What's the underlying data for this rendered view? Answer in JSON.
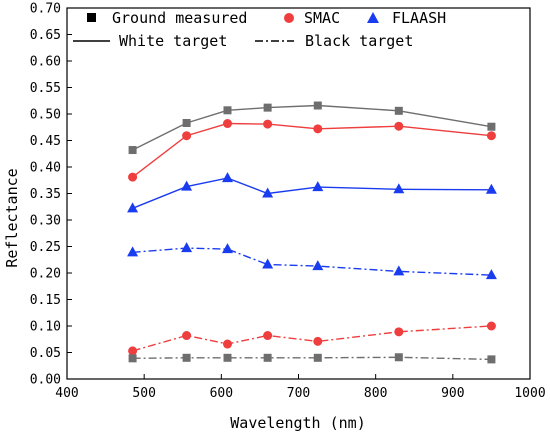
{
  "chart_data": {
    "type": "line",
    "xlabel": "Wavelength (nm)",
    "ylabel": "Reflectance",
    "xlim": [
      400,
      1000
    ],
    "ylim": [
      0.0,
      0.7
    ],
    "xticks": [
      "400",
      "500",
      "600",
      "700",
      "800",
      "900",
      "1000"
    ],
    "yticks": [
      "0.00",
      "0.05",
      "0.10",
      "0.15",
      "0.20",
      "0.25",
      "0.30",
      "0.35",
      "0.40",
      "0.45",
      "0.50",
      "0.55",
      "0.60",
      "0.65",
      "0.70"
    ],
    "grid": false,
    "legend_position": "top",
    "legend": {
      "ground": "Ground measured",
      "smac": "SMAC",
      "flaash": "FLAASH",
      "white": "White target",
      "black": "Black target"
    },
    "x": [
      485,
      555,
      608,
      660,
      725,
      830,
      950
    ],
    "series": [
      {
        "name": "Ground measured",
        "target": "White target",
        "color": "#6e6e6e",
        "marker": "square",
        "dash": "solid",
        "values": [
          0.432,
          0.483,
          0.507,
          0.512,
          0.516,
          0.506,
          0.476
        ]
      },
      {
        "name": "SMAC",
        "target": "White target",
        "color": "#ee3e3e",
        "marker": "circle",
        "dash": "solid",
        "values": [
          0.381,
          0.459,
          0.482,
          0.481,
          0.472,
          0.477,
          0.459
        ]
      },
      {
        "name": "FLAASH",
        "target": "White target",
        "color": "#1a3cf0",
        "marker": "triangle",
        "dash": "solid",
        "values": [
          0.322,
          0.363,
          0.379,
          0.35,
          0.362,
          0.358,
          0.357
        ]
      },
      {
        "name": "FLAASH",
        "target": "Black target",
        "color": "#1a3cf0",
        "marker": "triangle",
        "dash": "dashdot",
        "values": [
          0.239,
          0.247,
          0.245,
          0.216,
          0.213,
          0.203,
          0.196
        ]
      },
      {
        "name": "SMAC",
        "target": "Black target",
        "color": "#ee3e3e",
        "marker": "circle",
        "dash": "dashdot",
        "values": [
          0.053,
          0.082,
          0.066,
          0.082,
          0.071,
          0.089,
          0.1
        ]
      },
      {
        "name": "Ground measured",
        "target": "Black target",
        "color": "#6e6e6e",
        "marker": "square",
        "dash": "dashdot",
        "values": [
          0.039,
          0.04,
          0.04,
          0.04,
          0.04,
          0.041,
          0.037
        ]
      }
    ]
  }
}
